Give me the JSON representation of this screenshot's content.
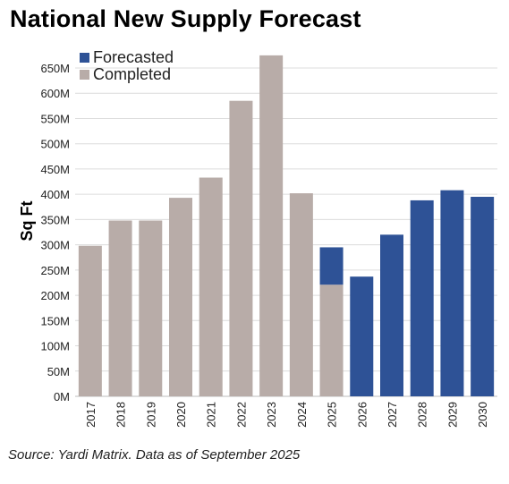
{
  "chart_data": {
    "type": "bar",
    "title": "National New Supply Forecast",
    "ylabel": "Sq Ft",
    "xlabel": "",
    "categories": [
      "2017",
      "2018",
      "2019",
      "2020",
      "2021",
      "2022",
      "2023",
      "2024",
      "2025",
      "2026",
      "2027",
      "2028",
      "2029",
      "2030"
    ],
    "series": [
      {
        "name": "Completed",
        "color": "#b8aca8",
        "values": [
          298,
          348,
          348,
          393,
          433,
          585,
          675,
          402,
          221,
          0,
          0,
          0,
          0,
          0
        ]
      },
      {
        "name": "Forecasted",
        "color": "#2e5296",
        "values": [
          0,
          0,
          0,
          0,
          0,
          0,
          0,
          0,
          74,
          237,
          320,
          388,
          408,
          395
        ]
      }
    ],
    "stacked": true,
    "ylim": [
      0,
      650
    ],
    "yticks": [
      {
        "v": 0,
        "label": "0M"
      },
      {
        "v": 50,
        "label": "50M"
      },
      {
        "v": 100,
        "label": "100M"
      },
      {
        "v": 150,
        "label": "150M"
      },
      {
        "v": 200,
        "label": "200M"
      },
      {
        "v": 250,
        "label": "250M"
      },
      {
        "v": 300,
        "label": "300M"
      },
      {
        "v": 350,
        "label": "350M"
      },
      {
        "v": 400,
        "label": "400M"
      },
      {
        "v": 450,
        "label": "450M"
      },
      {
        "v": 500,
        "label": "500M"
      },
      {
        "v": 550,
        "label": "550M"
      },
      {
        "v": 600,
        "label": "600M"
      },
      {
        "v": 650,
        "label": "650M"
      }
    ],
    "grid": true,
    "legend_position": "top-left",
    "legend_order": [
      "Forecasted",
      "Completed"
    ]
  },
  "source": "Source: Yardi Matrix. Data as of September 2025"
}
